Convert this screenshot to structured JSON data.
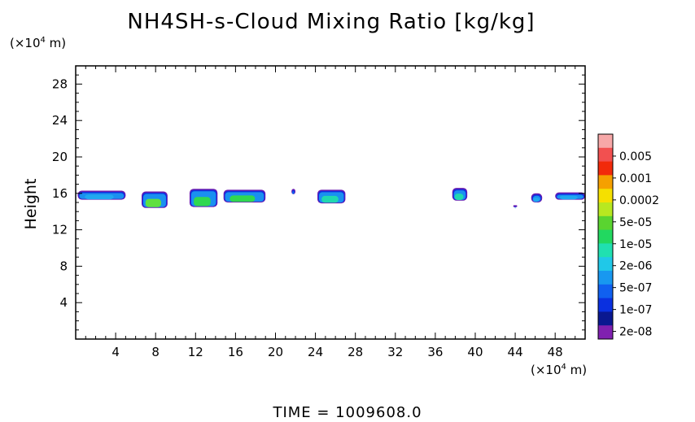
{
  "title": "NH4SH-s-Cloud Mixing Ratio [kg/kg]",
  "y_unit": "(×10",
  "y_unit_exp": "4",
  "y_unit_tail": " m)",
  "x_unit": "(×10",
  "x_unit_exp": "4",
  "x_unit_tail": " m)",
  "time_label": "TIME  =  1009608.0",
  "chart_data": {
    "type": "heatmap",
    "title": "NH4SH-s-Cloud Mixing Ratio [kg/kg]",
    "ylabel": "Height",
    "xlim": [
      0,
      51
    ],
    "ylim": [
      0,
      30
    ],
    "xticks": [
      4,
      8,
      12,
      16,
      20,
      24,
      28,
      32,
      36,
      40,
      44,
      48
    ],
    "yticks": [
      4,
      8,
      12,
      16,
      20,
      24,
      28
    ],
    "colorbar": {
      "labels": [
        "0.005",
        "0.001",
        "0.0002",
        "5e-05",
        "1e-05",
        "2e-06",
        "5e-07",
        "1e-07",
        "2e-08"
      ],
      "colors": [
        "#f7a8a8",
        "#f25050",
        "#f22a0a",
        "#f5a000",
        "#f5e000",
        "#b8e820",
        "#5ad430",
        "#22d860",
        "#20e0b0",
        "#20c8e8",
        "#1898f0",
        "#1060f0",
        "#0a30e0",
        "#0a1890",
        "#8020b0"
      ]
    },
    "cloud_patches": [
      {
        "x": [
          0.2,
          5.0
        ],
        "y": [
          15.3,
          16.3
        ],
        "max_level": "5e-07"
      },
      {
        "x": [
          6.6,
          9.2
        ],
        "y": [
          14.4,
          16.2
        ],
        "max_level": "5e-05"
      },
      {
        "x": [
          11.4,
          14.2
        ],
        "y": [
          14.5,
          16.5
        ],
        "max_level": "1e-05"
      },
      {
        "x": [
          14.8,
          19.0
        ],
        "y": [
          15.0,
          16.4
        ],
        "max_level": "1e-05"
      },
      {
        "x": [
          21.6,
          22.0
        ],
        "y": [
          15.9,
          16.5
        ],
        "max_level": "1e-07"
      },
      {
        "x": [
          24.2,
          27.0
        ],
        "y": [
          14.9,
          16.4
        ],
        "max_level": "2e-06"
      },
      {
        "x": [
          37.7,
          39.2
        ],
        "y": [
          15.2,
          16.6
        ],
        "max_level": "2e-06"
      },
      {
        "x": [
          43.8,
          44.2
        ],
        "y": [
          14.5,
          14.7
        ],
        "max_level": "2e-06"
      },
      {
        "x": [
          45.6,
          46.7
        ],
        "y": [
          15.0,
          16.0
        ],
        "max_level": "5e-07"
      },
      {
        "x": [
          48.0,
          51.0
        ],
        "y": [
          15.3,
          16.1
        ],
        "max_level": "5e-07"
      }
    ]
  }
}
